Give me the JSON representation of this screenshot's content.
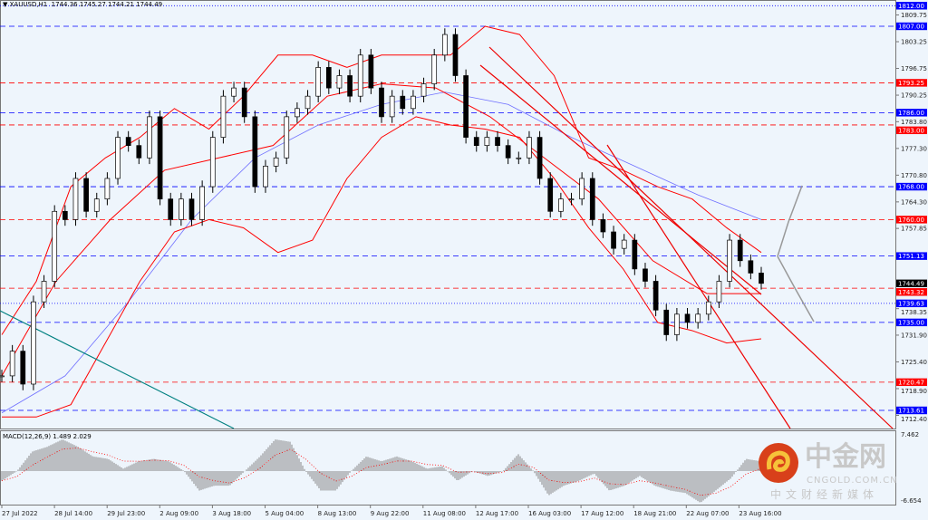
{
  "header": {
    "symbol": "XAUUSD,H1",
    "ohlc": "1744.36 1745.27 1744.21 1744.49"
  },
  "colors": {
    "bg": "#eef5fc",
    "blue_level": "#0000ff",
    "red_level": "#ff0000",
    "bull_band": "#ff0000",
    "ma": "#6f6fff",
    "trend_teal": "#008080",
    "current": "#000000"
  },
  "watermark": {
    "brand": "中金网",
    "domain": "CNGOLD.COM.CN",
    "slogan": "中文财经新媒体"
  },
  "chart_data": {
    "type": "candlestick",
    "price_ticks": [
      "1809.75",
      "1803.25",
      "1796.75",
      "1790.25",
      "1783.80",
      "1777.30",
      "1770.80",
      "1764.30",
      "1757.85",
      "1738.35",
      "1731.90",
      "1725.40",
      "1718.90",
      "1712.40"
    ],
    "levels": [
      {
        "value": 1812.0,
        "label": "1812.00",
        "color": "blue",
        "style": "dotted"
      },
      {
        "value": 1807.0,
        "label": "1807.00",
        "color": "blue",
        "style": "dashed"
      },
      {
        "value": 1793.25,
        "label": "1793.25",
        "color": "red",
        "style": "dashed"
      },
      {
        "value": 1786.0,
        "label": "1786.00",
        "color": "blue",
        "style": "dashed"
      },
      {
        "value": 1783.0,
        "label": "1783.00",
        "color": "red",
        "style": "dashed"
      },
      {
        "value": 1768.0,
        "label": "1768.00",
        "color": "blue",
        "style": "dashed"
      },
      {
        "value": 1760.0,
        "label": "1760.00",
        "color": "red",
        "style": "dashed"
      },
      {
        "value": 1751.13,
        "label": "1751.13",
        "color": "blue",
        "style": "dashed"
      },
      {
        "value": 1744.49,
        "label": "1744.49",
        "color": "black",
        "style": "none"
      },
      {
        "value": 1743.32,
        "label": "1743.32",
        "color": "red",
        "style": "dashed"
      },
      {
        "value": 1739.63,
        "label": "1739.63",
        "color": "blue",
        "style": "dotted"
      },
      {
        "value": 1735.0,
        "label": "1735.00",
        "color": "blue",
        "style": "dashed"
      },
      {
        "value": 1720.47,
        "label": "1720.47",
        "color": "red",
        "style": "dashed"
      },
      {
        "value": 1713.61,
        "label": "1713.61",
        "color": "blue",
        "style": "dashed"
      }
    ],
    "time_labels": [
      "27 Jul 2022",
      "28 Jul 14:00",
      "29 Jul 23:00",
      "2 Aug 09:00",
      "3 Aug 18:00",
      "5 Aug 04:00",
      "8 Aug 13:00",
      "9 Aug 22:00",
      "11 Aug 08:00",
      "12 Aug 17:00",
      "16 Aug 03:00",
      "17 Aug 12:00",
      "18 Aug 21:00",
      "22 Aug 07:00",
      "23 Aug 16:00"
    ],
    "closes": [
      1722,
      1728,
      1720,
      1740,
      1745,
      1762,
      1760,
      1770,
      1762,
      1765,
      1770,
      1780,
      1778,
      1775,
      1785,
      1765,
      1760,
      1765,
      1760,
      1768,
      1780,
      1790,
      1792,
      1785,
      1768,
      1773,
      1775,
      1785,
      1787,
      1790,
      1797,
      1792,
      1795,
      1790,
      1800,
      1792,
      1785,
      1790,
      1787,
      1790,
      1793,
      1800,
      1805,
      1795,
      1780,
      1778,
      1780,
      1778,
      1775,
      1775,
      1780,
      1770,
      1762,
      1765,
      1765,
      1770,
      1760,
      1757,
      1753,
      1755,
      1748,
      1745,
      1738,
      1732,
      1737,
      1735,
      1737,
      1740,
      1745,
      1755,
      1750,
      1747,
      1744.49
    ],
    "bollinger_upper": [
      1732,
      1745,
      1768,
      1775,
      1780,
      1787,
      1782,
      1790,
      1800,
      1800,
      1797,
      1800,
      1800,
      1800,
      1807,
      1805,
      1795,
      1775,
      1772,
      1768,
      1765,
      1758,
      1752
    ],
    "bollinger_middle": [
      1722,
      1745,
      1760,
      1772,
      1775,
      1778,
      1790,
      1793,
      1792,
      1785,
      1775,
      1765,
      1750,
      1742,
      1742
    ],
    "bollinger_lower": [
      1712,
      1712,
      1715,
      1730,
      1745,
      1757,
      1760,
      1758,
      1752,
      1755,
      1770,
      1780,
      1785,
      1783,
      1782,
      1780,
      1770,
      1758,
      1748,
      1735,
      1733,
      1730,
      1731
    ],
    "moving_average": [
      1713,
      1722,
      1740,
      1760,
      1775,
      1783,
      1788,
      1791,
      1788,
      1780,
      1773,
      1766,
      1760
    ],
    "macd": {
      "label": "MACD(12,26,9) 1.489 2.029",
      "max_label": "7.462",
      "min_label": "-6.654",
      "range": [
        -6.654,
        7.462
      ],
      "hist": [
        -2,
        0,
        4,
        5,
        6.5,
        5,
        3,
        2.5,
        0.5,
        2,
        2.5,
        2,
        0,
        -4,
        -3,
        -3,
        0,
        3,
        6.5,
        6,
        0,
        -4,
        -4,
        0,
        3,
        2,
        3,
        2,
        0.5,
        1,
        -2,
        0,
        -1,
        0,
        3.5,
        0,
        -5,
        -3,
        -2,
        -0.5,
        -4,
        -3,
        -1,
        -3,
        -4,
        -4.5,
        -6.5,
        -4,
        -1.5,
        2.5,
        2
      ]
    }
  }
}
